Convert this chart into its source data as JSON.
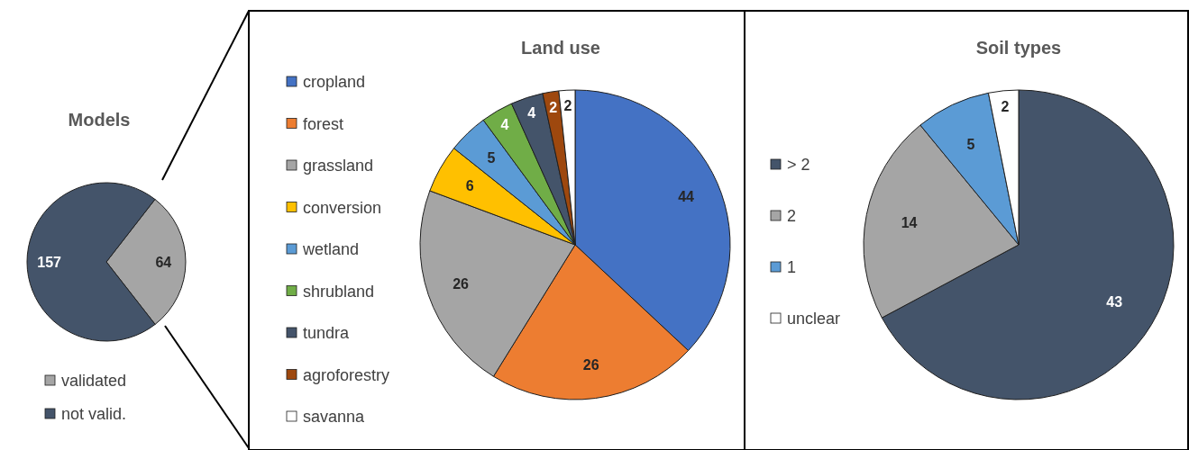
{
  "chart_data": [
    {
      "type": "pie",
      "title": "Models",
      "categories": [
        "validated",
        "not valid."
      ],
      "values": [
        64,
        157
      ],
      "colors": [
        "#a5a5a5",
        "#44546a"
      ],
      "data_labels": true,
      "legend": "bottom"
    },
    {
      "type": "pie",
      "title": "Land use",
      "categories": [
        "cropland",
        "forest",
        "grassland",
        "conversion",
        "wetland",
        "shrubland",
        "tundra",
        "agroforestry",
        "savanna"
      ],
      "values": [
        44,
        26,
        26,
        6,
        5,
        4,
        4,
        2,
        2
      ],
      "colors": [
        "#4472c4",
        "#ed7d31",
        "#a5a5a5",
        "#ffc000",
        "#5b9bd5",
        "#70ad47",
        "#44546a",
        "#9e480e",
        "#ffffff"
      ],
      "data_labels": true,
      "legend": "left"
    },
    {
      "type": "pie",
      "title": "Soil types",
      "categories": [
        "> 2",
        "2",
        "1",
        "unclear"
      ],
      "values": [
        43,
        14,
        5,
        2
      ],
      "colors": [
        "#44546a",
        "#a5a5a5",
        "#5b9bd5",
        "#ffffff"
      ],
      "data_labels": true,
      "legend": "left"
    }
  ]
}
